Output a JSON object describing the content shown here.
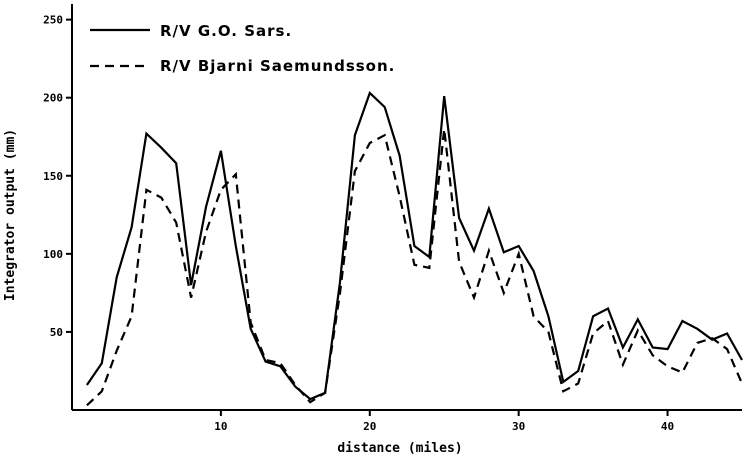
{
  "chart_data": {
    "type": "line",
    "xlabel": "distance   (miles)",
    "ylabel": "Integrator output  (mm)",
    "xlim": [
      0,
      45
    ],
    "ylim": [
      0,
      260
    ],
    "xticks": [
      10,
      20,
      30,
      40
    ],
    "xtick_labels": [
      "10",
      "20",
      "30",
      "40"
    ],
    "yticks": [
      50,
      100,
      150,
      200,
      250
    ],
    "ytick_labels": [
      "50",
      "100",
      "150",
      "200",
      "250"
    ],
    "grid": false,
    "legend_position": "top-left",
    "series": [
      {
        "name": "R/V   G.O. Sars.",
        "style": "solid",
        "color": "#000000",
        "x": [
          1,
          2,
          3,
          4,
          5,
          6,
          7,
          8,
          9,
          10,
          11,
          12,
          13,
          14,
          15,
          16,
          17,
          18,
          19,
          20,
          21,
          22,
          23,
          24,
          25,
          26,
          27,
          28,
          29,
          30,
          31,
          32,
          33,
          34,
          35,
          36,
          37,
          38,
          39,
          40,
          41,
          42,
          43,
          44,
          45
        ],
        "y": [
          16,
          30,
          85,
          117,
          177,
          168,
          158,
          80,
          130,
          166,
          105,
          52,
          31,
          28,
          15,
          7,
          11,
          82,
          176,
          203,
          194,
          163,
          105,
          98,
          201,
          123,
          102,
          129,
          101,
          105,
          89,
          60,
          18,
          25,
          60,
          65,
          40,
          58,
          40,
          39,
          57,
          52,
          45,
          49,
          32
        ]
      },
      {
        "name": "R/V   Bjarni  Saemundsson.",
        "style": "dashed",
        "color": "#000000",
        "x": [
          1,
          2,
          3,
          4,
          5,
          6,
          7,
          8,
          9,
          10,
          11,
          12,
          13,
          14,
          15,
          16,
          17,
          18,
          19,
          20,
          21,
          22,
          23,
          24,
          25,
          26,
          27,
          28,
          29,
          30,
          31,
          32,
          33,
          34,
          35,
          36,
          37,
          38,
          39,
          40,
          41,
          42,
          43,
          44,
          45
        ],
        "y": [
          3,
          12,
          38,
          60,
          141,
          136,
          120,
          72,
          114,
          141,
          151,
          56,
          32,
          30,
          16,
          5,
          11,
          75,
          153,
          171,
          176,
          137,
          93,
          91,
          180,
          95,
          72,
          102,
          75,
          100,
          60,
          50,
          12,
          17,
          49,
          57,
          29,
          51,
          35,
          28,
          24,
          43,
          46,
          39,
          17
        ]
      }
    ]
  }
}
